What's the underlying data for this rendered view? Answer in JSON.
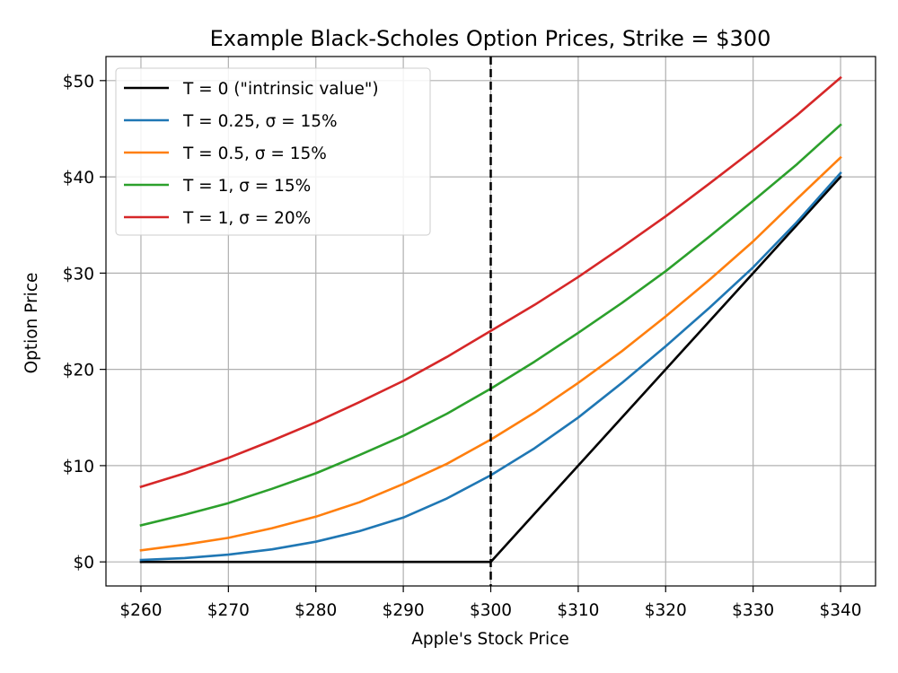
{
  "chart_data": {
    "type": "line",
    "title": "Example Black-Scholes Option Prices, Strike = $300",
    "xlabel": "Apple's Stock Price",
    "ylabel": "Option Price",
    "xlim": [
      256,
      344
    ],
    "ylim": [
      -2.5,
      52.5
    ],
    "x_ticks": [
      260,
      270,
      280,
      290,
      300,
      310,
      320,
      330,
      340
    ],
    "x_tick_labels": [
      "$260",
      "$270",
      "$280",
      "$290",
      "$300",
      "$310",
      "$320",
      "$330",
      "$340"
    ],
    "y_ticks": [
      0,
      10,
      20,
      30,
      40,
      50
    ],
    "y_tick_labels": [
      "$0",
      "$10",
      "$20",
      "$30",
      "$40",
      "$50"
    ],
    "grid": true,
    "legend_position": "top-left",
    "reference_line": {
      "x": 300,
      "style": "dashed",
      "color": "#000000"
    },
    "x": [
      260,
      265,
      270,
      275,
      280,
      285,
      290,
      295,
      300,
      305,
      310,
      315,
      320,
      325,
      330,
      335,
      340
    ],
    "series": [
      {
        "name": "T = 0 (\"intrinsic value\")",
        "color": "#000000",
        "values": [
          0,
          0,
          0,
          0,
          0,
          0,
          0,
          0,
          0,
          5,
          10,
          15,
          20,
          25,
          30,
          35,
          40
        ]
      },
      {
        "name": "T = 0.25, σ = 15%",
        "color": "#1f77b4",
        "values": [
          0.2,
          0.4,
          0.75,
          1.3,
          2.1,
          3.2,
          4.6,
          6.6,
          9.0,
          11.8,
          15.0,
          18.6,
          22.4,
          26.4,
          30.6,
          35.3,
          40.4
        ]
      },
      {
        "name": "T = 0.5, σ = 15%",
        "color": "#ff7f0e",
        "values": [
          1.2,
          1.8,
          2.5,
          3.5,
          4.7,
          6.2,
          8.1,
          10.2,
          12.7,
          15.5,
          18.6,
          21.9,
          25.5,
          29.3,
          33.3,
          37.7,
          42.0
        ]
      },
      {
        "name": "T = 1, σ = 15%",
        "color": "#2ca02c",
        "values": [
          3.8,
          4.9,
          6.1,
          7.6,
          9.2,
          11.1,
          13.1,
          15.4,
          18.0,
          20.8,
          23.8,
          26.9,
          30.2,
          33.8,
          37.5,
          41.3,
          45.4
        ]
      },
      {
        "name": "T = 1, σ = 20%",
        "color": "#d62728",
        "values": [
          7.8,
          9.2,
          10.8,
          12.6,
          14.5,
          16.6,
          18.8,
          21.3,
          24.0,
          26.7,
          29.6,
          32.7,
          35.9,
          39.3,
          42.8,
          46.4,
          50.3
        ]
      }
    ]
  }
}
